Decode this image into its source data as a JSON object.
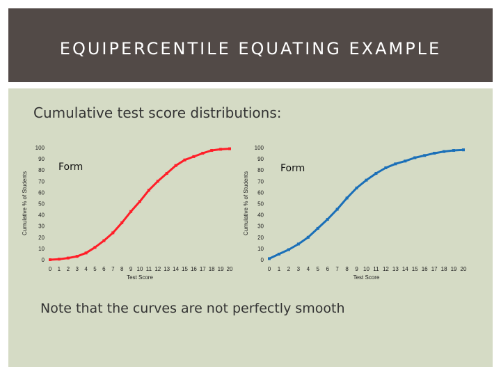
{
  "slide": {
    "title": "EQUIPERCENTILE EQUATING EXAMPLE",
    "subtitle": "Cumulative test score distributions:",
    "note": "Note that the curves are not perfectly smooth"
  },
  "chart_data": [
    {
      "type": "line",
      "title": "",
      "series": [
        {
          "label": "Form",
          "color": "#ff1e28",
          "values": [
            0,
            0.5,
            1.5,
            3,
            6,
            11,
            17,
            24,
            33,
            43,
            52,
            62,
            70,
            77,
            84,
            89,
            92,
            95,
            97.5,
            98.5,
            99
          ]
        }
      ],
      "x": [
        0,
        1,
        2,
        3,
        4,
        5,
        6,
        7,
        8,
        9,
        10,
        11,
        12,
        13,
        14,
        15,
        16,
        17,
        18,
        19,
        20
      ],
      "xlabel": "Test Score",
      "ylabel": "Cumulative % of Students",
      "ylim": [
        0,
        100
      ],
      "yticks": [
        0,
        10,
        20,
        30,
        40,
        50,
        60,
        70,
        80,
        90,
        100
      ],
      "xticks": [
        0,
        1,
        2,
        3,
        4,
        5,
        6,
        7,
        8,
        9,
        10,
        11,
        12,
        13,
        14,
        15,
        16,
        17,
        18,
        19,
        20
      ],
      "grid": false
    },
    {
      "type": "line",
      "title": "",
      "series": [
        {
          "label": "Form",
          "color": "#1a6fb8",
          "values": [
            1,
            5,
            9,
            14,
            20,
            28,
            36,
            45,
            55,
            64,
            71,
            77,
            82,
            85.5,
            88,
            91,
            93,
            95,
            96.5,
            97.5,
            98
          ]
        }
      ],
      "x": [
        0,
        1,
        2,
        3,
        4,
        5,
        6,
        7,
        8,
        9,
        10,
        11,
        12,
        13,
        14,
        15,
        16,
        17,
        18,
        19,
        20
      ],
      "xlabel": "Test Score",
      "ylabel": "Cumulative % of Students",
      "ylim": [
        0,
        100
      ],
      "yticks": [
        0,
        10,
        20,
        30,
        40,
        50,
        60,
        70,
        80,
        90,
        100
      ],
      "xticks": [
        0,
        1,
        2,
        3,
        4,
        5,
        6,
        7,
        8,
        9,
        10,
        11,
        12,
        13,
        14,
        15,
        16,
        17,
        18,
        19,
        20
      ],
      "grid": false
    }
  ]
}
